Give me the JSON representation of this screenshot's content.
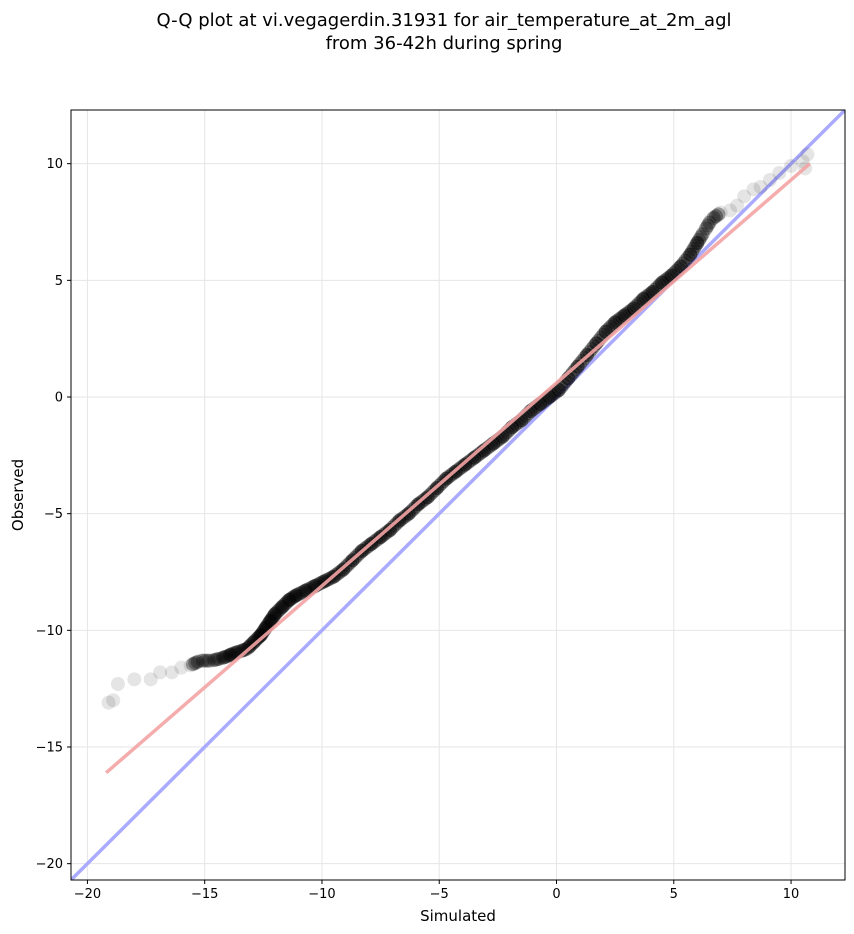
{
  "chart_data": {
    "type": "scatter",
    "title_lines": [
      "Q-Q plot at vi.vegagerdin.31931 for air_temperature_at_2m_agl",
      "from 36-42h during spring"
    ],
    "xlabel": "Simulated",
    "ylabel": "Observed",
    "xlim": [
      -20.7,
      12.3
    ],
    "ylim": [
      -20.7,
      12.3
    ],
    "xticks": [
      -20,
      -15,
      -10,
      -5,
      0,
      5,
      10
    ],
    "yticks": [
      -20,
      -15,
      -10,
      -5,
      0,
      5,
      10
    ],
    "xtick_labels": [
      "−20",
      "−15",
      "−10",
      "−5",
      "0",
      "5",
      "10"
    ],
    "ytick_labels": [
      "−20",
      "−15",
      "−10",
      "−5",
      "0",
      "5",
      "10"
    ],
    "grid": true,
    "series": [
      {
        "kind": "quantile points",
        "color": "#000000",
        "points": [
          [
            -19.1,
            -13.1
          ],
          [
            -18.9,
            -13.0
          ],
          [
            -18.7,
            -12.3
          ],
          [
            -18.0,
            -12.1
          ],
          [
            -17.3,
            -12.1
          ],
          [
            -16.9,
            -11.8
          ],
          [
            -16.4,
            -11.8
          ],
          [
            -16.0,
            -11.6
          ],
          [
            -15.6,
            -11.5
          ],
          [
            -15.2,
            -11.3
          ],
          [
            -14.7,
            -11.3
          ],
          [
            -14.3,
            -11.2
          ],
          [
            -14.0,
            -11.1
          ],
          [
            -13.8,
            -11.0
          ],
          [
            -13.5,
            -10.9
          ],
          [
            -13.2,
            -10.8
          ],
          [
            -13.0,
            -10.6
          ],
          [
            -12.8,
            -10.4
          ],
          [
            -12.6,
            -10.2
          ],
          [
            -12.4,
            -9.9
          ],
          [
            -12.2,
            -9.6
          ],
          [
            -12.0,
            -9.3
          ],
          [
            -11.7,
            -9.0
          ],
          [
            -11.4,
            -8.7
          ],
          [
            -11.1,
            -8.5
          ],
          [
            -10.7,
            -8.3
          ],
          [
            -10.3,
            -8.1
          ],
          [
            -9.9,
            -7.9
          ],
          [
            -9.5,
            -7.7
          ],
          [
            -9.1,
            -7.4
          ],
          [
            -8.7,
            -7.0
          ],
          [
            -8.3,
            -6.6
          ],
          [
            -7.9,
            -6.3
          ],
          [
            -7.5,
            -6.0
          ],
          [
            -7.1,
            -5.7
          ],
          [
            -6.7,
            -5.3
          ],
          [
            -6.3,
            -5.0
          ],
          [
            -5.9,
            -4.6
          ],
          [
            -5.5,
            -4.3
          ],
          [
            -5.1,
            -3.9
          ],
          [
            -4.7,
            -3.5
          ],
          [
            -4.3,
            -3.2
          ],
          [
            -3.9,
            -2.9
          ],
          [
            -3.5,
            -2.6
          ],
          [
            -3.1,
            -2.3
          ],
          [
            -2.7,
            -2.0
          ],
          [
            -2.3,
            -1.7
          ],
          [
            -1.9,
            -1.3
          ],
          [
            -1.5,
            -1.0
          ],
          [
            -1.1,
            -0.6
          ],
          [
            -0.7,
            -0.3
          ],
          [
            -0.3,
            0.0
          ],
          [
            0.1,
            0.3
          ],
          [
            0.5,
            0.8
          ],
          [
            0.9,
            1.3
          ],
          [
            1.3,
            1.8
          ],
          [
            1.7,
            2.3
          ],
          [
            2.1,
            2.8
          ],
          [
            2.5,
            3.2
          ],
          [
            2.9,
            3.5
          ],
          [
            3.3,
            3.8
          ],
          [
            3.7,
            4.2
          ],
          [
            4.1,
            4.5
          ],
          [
            4.5,
            4.9
          ],
          [
            4.9,
            5.2
          ],
          [
            5.3,
            5.6
          ],
          [
            5.7,
            6.1
          ],
          [
            6.0,
            6.6
          ],
          [
            6.3,
            7.1
          ],
          [
            6.6,
            7.6
          ],
          [
            7.0,
            7.9
          ],
          [
            7.4,
            8.0
          ],
          [
            7.7,
            8.2
          ],
          [
            8.0,
            8.6
          ],
          [
            8.4,
            8.9
          ],
          [
            8.7,
            9.0
          ],
          [
            9.1,
            9.3
          ],
          [
            9.5,
            9.6
          ],
          [
            10.0,
            9.9
          ],
          [
            10.5,
            10.1
          ],
          [
            10.7,
            10.4
          ],
          [
            10.6,
            9.8
          ]
        ]
      },
      {
        "kind": "regression line",
        "color": "#f4a3a3",
        "x": [
          -19.2,
          10.8
        ],
        "y": [
          -16.1,
          10.0
        ]
      },
      {
        "kind": "1:1 reference line",
        "color": "#aaaaff",
        "x": [
          -20.7,
          12.3
        ],
        "y": [
          -20.7,
          12.3
        ]
      }
    ]
  }
}
